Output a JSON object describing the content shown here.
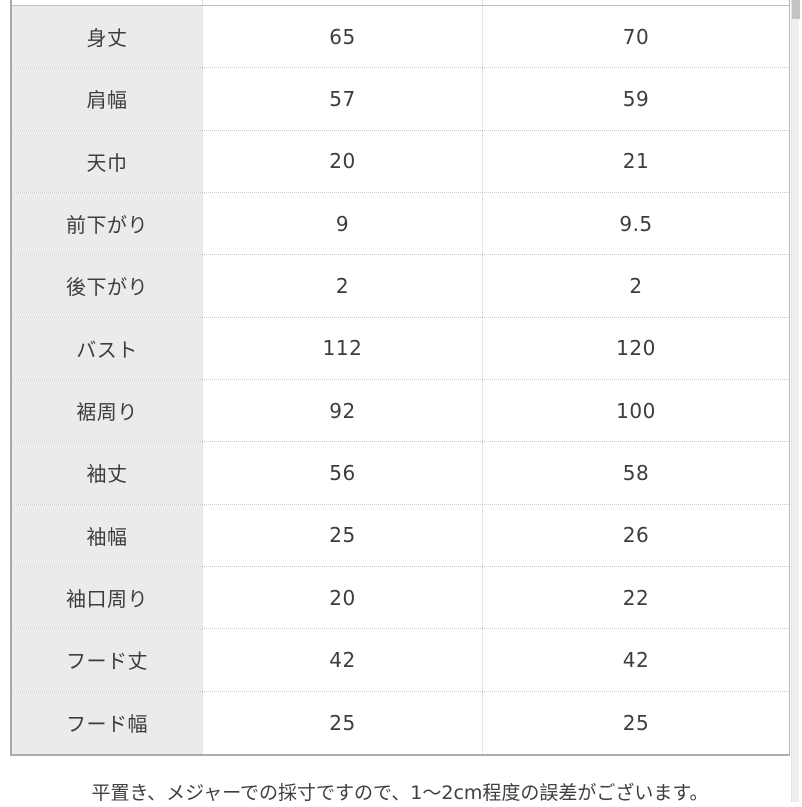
{
  "table": {
    "rows": [
      {
        "label": "身丈",
        "values": [
          "65",
          "70"
        ]
      },
      {
        "label": "肩幅",
        "values": [
          "57",
          "59"
        ]
      },
      {
        "label": "天巾",
        "values": [
          "20",
          "21"
        ]
      },
      {
        "label": "前下がり",
        "values": [
          "9",
          "9.5"
        ]
      },
      {
        "label": "後下がり",
        "values": [
          "2",
          "2"
        ]
      },
      {
        "label": "バスト",
        "values": [
          "112",
          "120"
        ]
      },
      {
        "label": "裾周り",
        "values": [
          "92",
          "100"
        ]
      },
      {
        "label": "袖丈",
        "values": [
          "56",
          "58"
        ]
      },
      {
        "label": "袖幅",
        "values": [
          "25",
          "26"
        ]
      },
      {
        "label": "袖口周り",
        "values": [
          "20",
          "22"
        ]
      },
      {
        "label": "フード丈",
        "values": [
          "42",
          "42"
        ]
      },
      {
        "label": "フード幅",
        "values": [
          "25",
          "25"
        ]
      }
    ]
  },
  "footer": {
    "note": "平置き、メジャーでの採寸ですので、1～2cm程度の誤差がございます。"
  },
  "colors": {
    "label_cell_bg": "#ebebeb",
    "cell_text": "#3d3d3d",
    "grid_dotted": "#c9c9c9",
    "outer_border": "#a9a9a9",
    "scrollbar_track": "#eeeeee",
    "scrollbar_thumb": "#c3c3c3"
  }
}
